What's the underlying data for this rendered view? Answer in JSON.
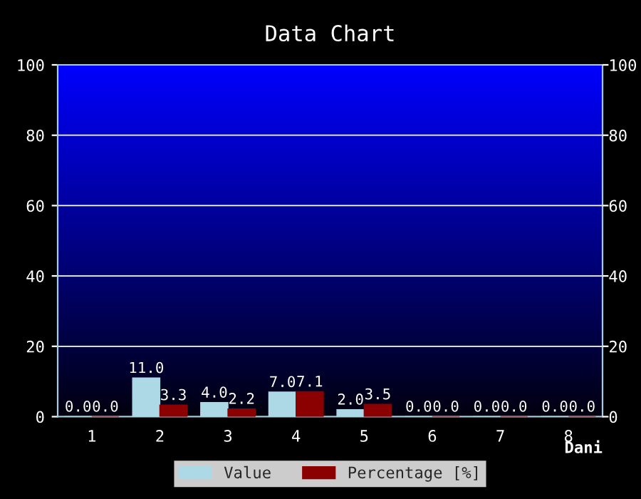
{
  "chart_data": {
    "type": "bar",
    "title": "Data Chart",
    "xlabel": "Dani",
    "categories": [
      "1",
      "2",
      "3",
      "4",
      "5",
      "6",
      "7",
      "8"
    ],
    "series": [
      {
        "name": "Value",
        "color": "#add8e6",
        "values": [
          0,
          11,
          4,
          7,
          2,
          0,
          0,
          0
        ],
        "value_labels": [
          "0.0",
          "11.0",
          "4.0",
          "7.0",
          "2.0",
          "0.0",
          "0.0",
          "0.0"
        ]
      },
      {
        "name": "Percentage [%]",
        "color": "#8b0000",
        "values": [
          0,
          3.3,
          2.2,
          7.1,
          3.5,
          0,
          0,
          0
        ],
        "value_labels": [
          "0.0",
          "3.3",
          "2.2",
          "7.1",
          "3.5",
          "0.0",
          "0.0",
          "0.0"
        ]
      }
    ],
    "ylim": [
      0,
      100
    ],
    "yticks": [
      0,
      20,
      40,
      60,
      80,
      100
    ],
    "y2lim": [
      0,
      100
    ],
    "y2ticks": [
      0,
      20,
      40,
      60,
      80,
      100
    ],
    "grid": "y",
    "legend": "bottom"
  }
}
